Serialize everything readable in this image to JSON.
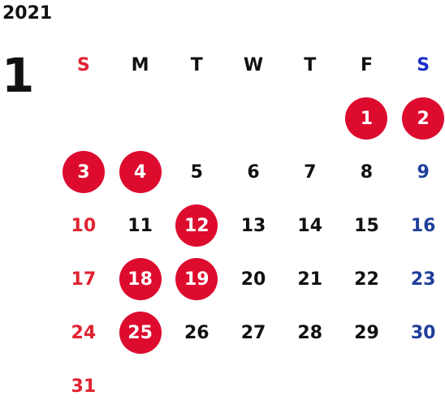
{
  "year": "2021",
  "month": "1",
  "weekdays": [
    {
      "label": "S",
      "type": "sun"
    },
    {
      "label": "M",
      "type": "normal"
    },
    {
      "label": "T",
      "type": "normal"
    },
    {
      "label": "W",
      "type": "normal"
    },
    {
      "label": "T",
      "type": "normal"
    },
    {
      "label": "F",
      "type": "normal"
    },
    {
      "label": "S",
      "type": "sat"
    }
  ],
  "weeks": [
    [
      null,
      null,
      null,
      null,
      null,
      {
        "day": "1",
        "holiday": true
      },
      {
        "day": "2",
        "holiday": true
      }
    ],
    [
      {
        "day": "3",
        "holiday": true
      },
      {
        "day": "4",
        "holiday": true
      },
      {
        "day": "5"
      },
      {
        "day": "6"
      },
      {
        "day": "7"
      },
      {
        "day": "8"
      },
      {
        "day": "9"
      }
    ],
    [
      {
        "day": "10"
      },
      {
        "day": "11"
      },
      {
        "day": "12",
        "holiday": true
      },
      {
        "day": "13"
      },
      {
        "day": "14"
      },
      {
        "day": "15"
      },
      {
        "day": "16"
      }
    ],
    [
      {
        "day": "17"
      },
      {
        "day": "18",
        "holiday": true
      },
      {
        "day": "19",
        "holiday": true
      },
      {
        "day": "20"
      },
      {
        "day": "21"
      },
      {
        "day": "22"
      },
      {
        "day": "23"
      }
    ],
    [
      {
        "day": "24"
      },
      {
        "day": "25",
        "holiday": true
      },
      {
        "day": "26"
      },
      {
        "day": "27"
      },
      {
        "day": "28"
      },
      {
        "day": "29"
      },
      {
        "day": "30"
      }
    ],
    [
      {
        "day": "31"
      },
      null,
      null,
      null,
      null,
      null,
      null
    ]
  ],
  "colors": {
    "holiday_fill": "#dd0b2e",
    "sunday": "#e02230",
    "saturday": "#1f3f9a",
    "saturday_header": "#1a2ecc",
    "text": "#111111"
  }
}
